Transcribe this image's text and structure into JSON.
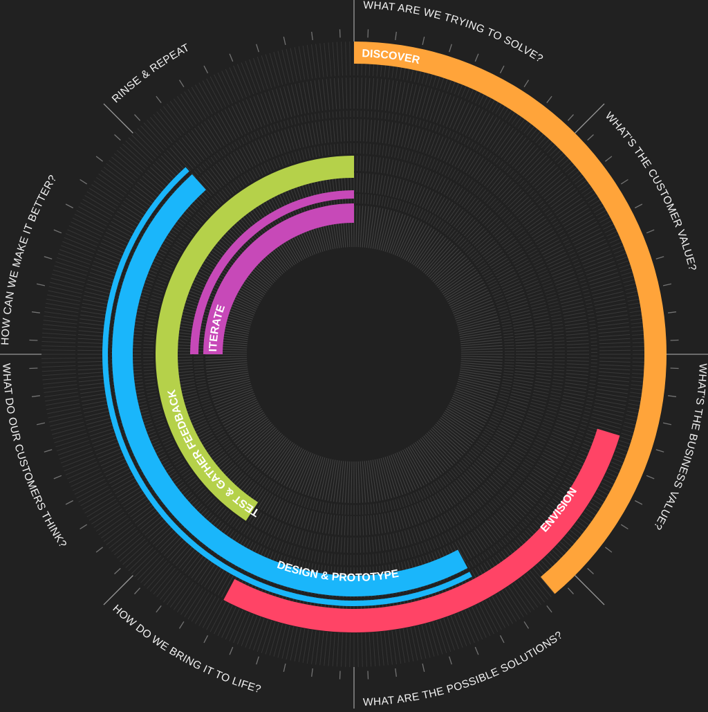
{
  "diagram": {
    "background": "#212121",
    "guide_color": "#6a6a6a",
    "questions": [
      "WHAT ARE WE TRYING TO SOLVE?",
      "WHAT'S THE CUSTOMER VALUE?",
      "WHAT'S THE BUSINESS VALUE?",
      "WHAT ARE THE POSSIBLE SOLUTIONS?",
      "HOW DO WE BRING IT TO LIFE?",
      "WHAT DO OUR CUSTOMERS THINK?",
      "HOW CAN WE MAKE IT BETTER?",
      "RINSE & REPEAT"
    ],
    "phases": [
      {
        "name": "DISCOVER",
        "color": "#ffa43a"
      },
      {
        "name": "ENVISION",
        "color": "#ff4466"
      },
      {
        "name": "DESIGN & PROTOTYPE",
        "color": "#1ab6fb"
      },
      {
        "name": "TEST & GATHER FEEDBACK",
        "color": "#b5d14a"
      },
      {
        "name": "ITERATE",
        "color": "#c749b8"
      }
    ]
  }
}
